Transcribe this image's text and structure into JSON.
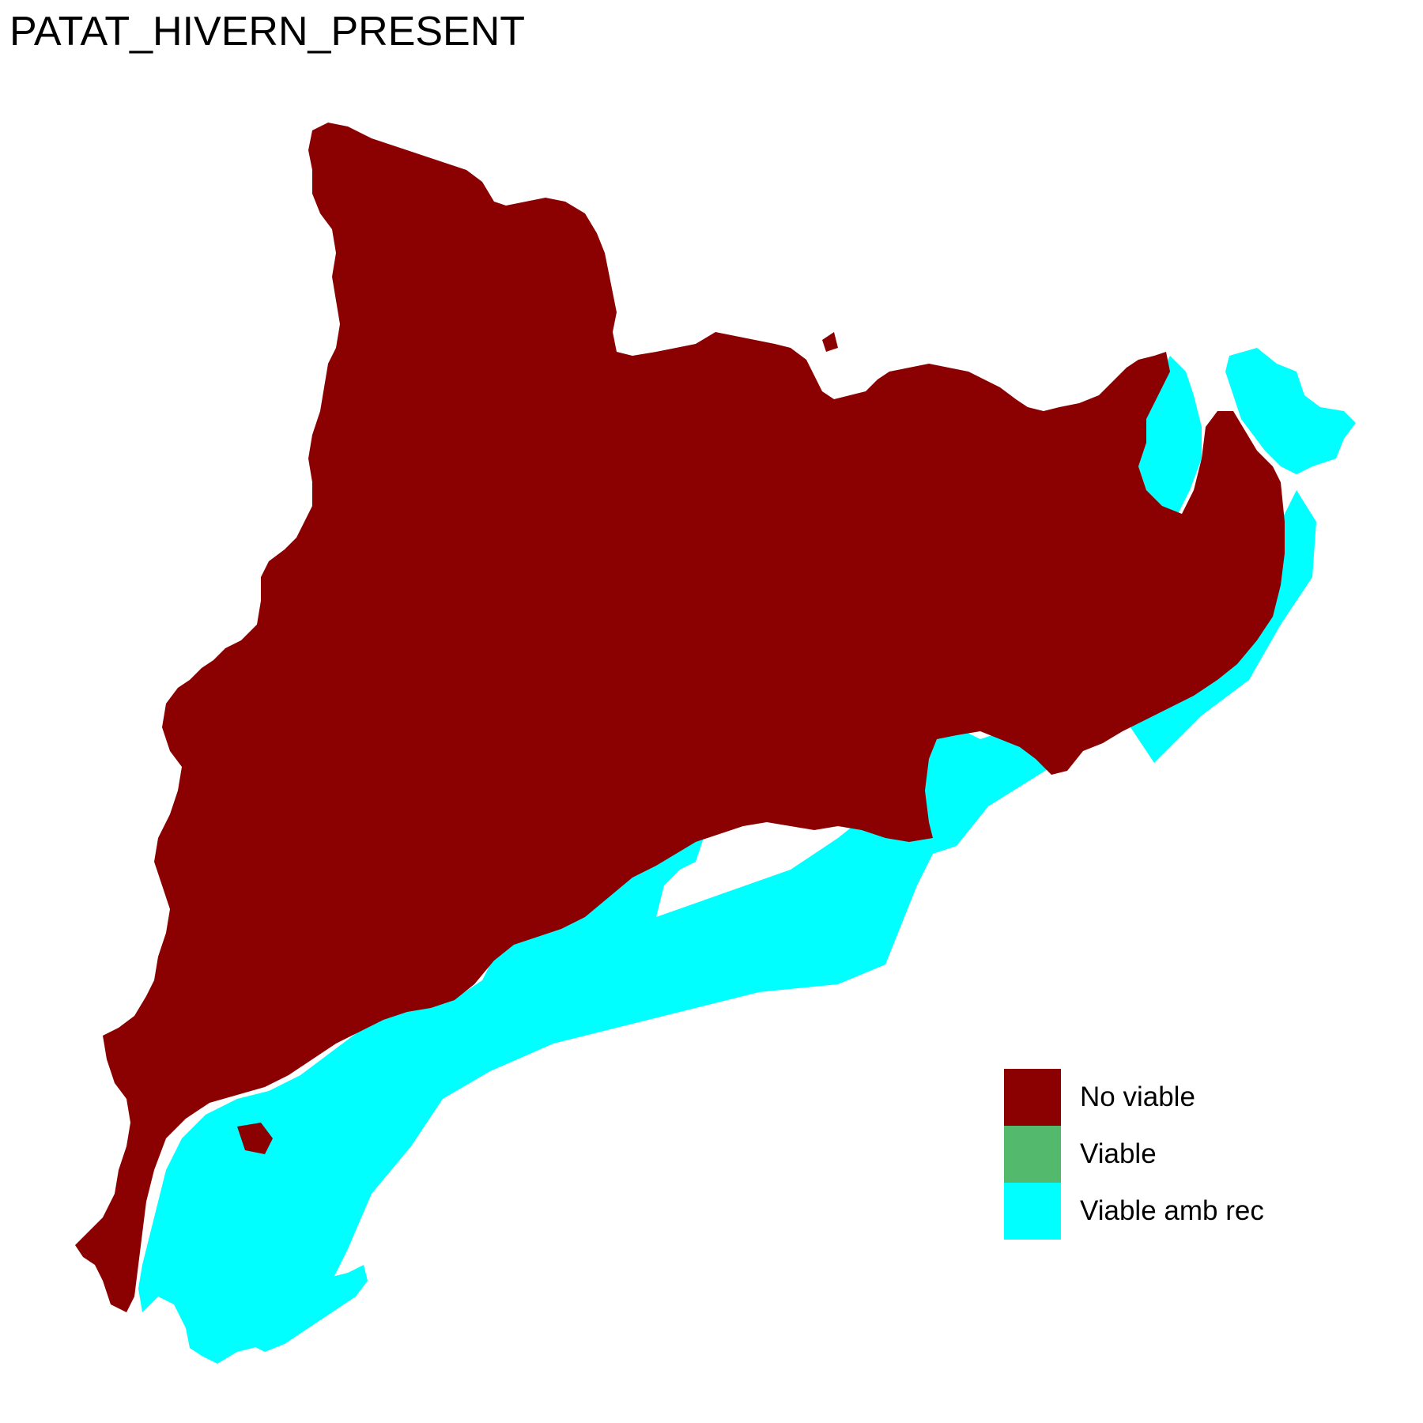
{
  "map": {
    "title": "PATAT_HIVERN_PRESENT",
    "region_colors": {
      "no_viable": "#8B0000",
      "viable": "#53B96C",
      "viable_amb_rec": "#00FFFF",
      "background": "#FFFFFF"
    }
  },
  "legend": {
    "items": [
      {
        "label": "No viable",
        "color": "#8B0000"
      },
      {
        "label": "Viable",
        "color": "#53B96C"
      },
      {
        "label": "Viable amb rec",
        "color": "#00FFFF"
      }
    ]
  }
}
